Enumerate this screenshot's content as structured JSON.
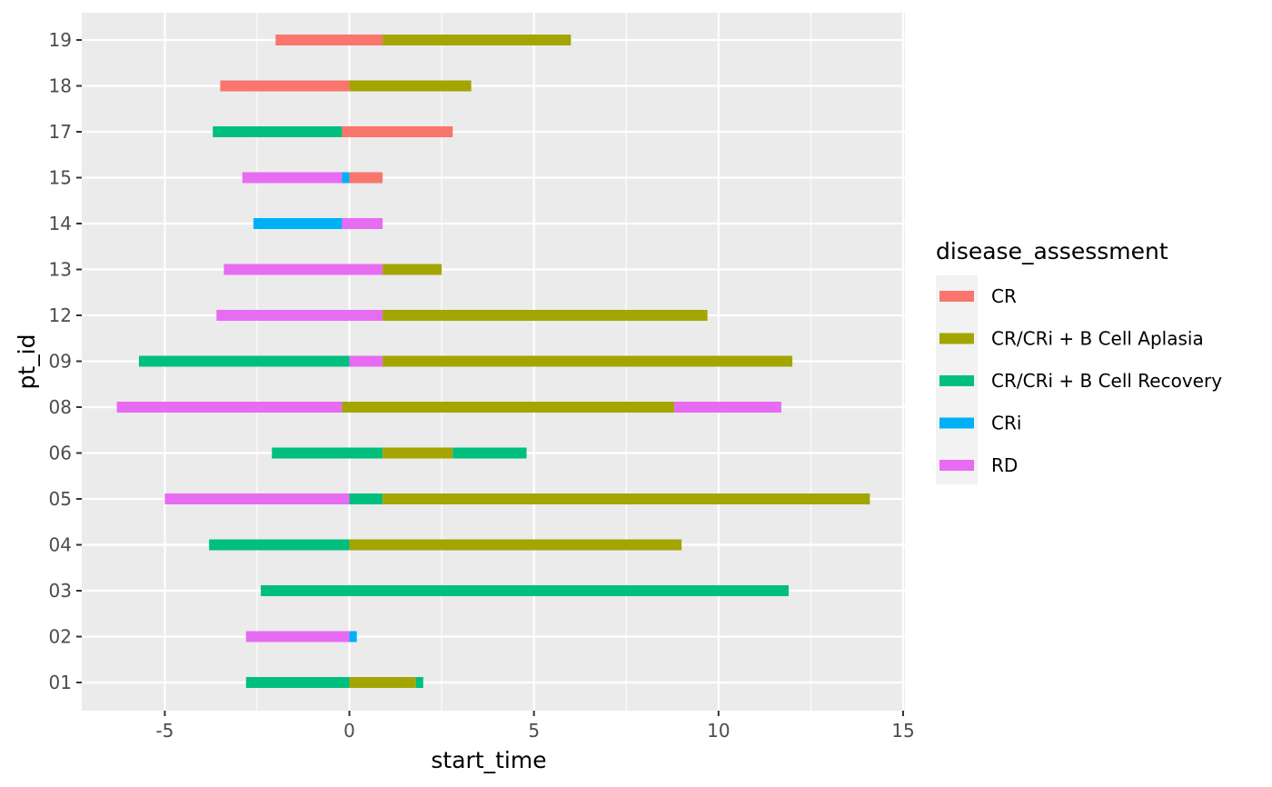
{
  "chart_data": {
    "type": "bar",
    "orientation": "horizontal-segments",
    "xlabel": "start_time",
    "ylabel": "pt_id",
    "xlim": [
      -7.25,
      15.05
    ],
    "x_ticks": [
      -5,
      0,
      5,
      10,
      15
    ],
    "x_tick_labels": [
      "-5",
      "0",
      "5",
      "10",
      "15"
    ],
    "categories": [
      "01",
      "02",
      "03",
      "04",
      "05",
      "06",
      "08",
      "09",
      "12",
      "13",
      "14",
      "15",
      "17",
      "18",
      "19"
    ],
    "grid": true,
    "legend": {
      "title": "disease_assessment",
      "placement": "right",
      "entries": [
        {
          "label": "CR",
          "color": "#F8766D"
        },
        {
          "label": "CR/CRi + B Cell Aplasia",
          "color": "#A3A500"
        },
        {
          "label": "CR/CRi + B Cell Recovery",
          "color": "#00BF7D"
        },
        {
          "label": "CRi",
          "color": "#00B0F6"
        },
        {
          "label": "RD",
          "color": "#E76BF3"
        }
      ]
    },
    "segments": [
      {
        "pt_id": "01",
        "start": -2.8,
        "end": 0.0,
        "assessment": "CR/CRi + B Cell Recovery"
      },
      {
        "pt_id": "01",
        "start": 0.0,
        "end": 1.8,
        "assessment": "CR/CRi + B Cell Aplasia"
      },
      {
        "pt_id": "01",
        "start": 1.8,
        "end": 2.0,
        "assessment": "CR/CRi + B Cell Recovery"
      },
      {
        "pt_id": "02",
        "start": -2.8,
        "end": 0.0,
        "assessment": "RD"
      },
      {
        "pt_id": "02",
        "start": 0.0,
        "end": 0.2,
        "assessment": "CRi"
      },
      {
        "pt_id": "03",
        "start": -2.4,
        "end": 11.9,
        "assessment": "CR/CRi + B Cell Recovery"
      },
      {
        "pt_id": "04",
        "start": -3.8,
        "end": 0.0,
        "assessment": "CR/CRi + B Cell Recovery"
      },
      {
        "pt_id": "04",
        "start": 0.0,
        "end": 9.0,
        "assessment": "CR/CRi + B Cell Aplasia"
      },
      {
        "pt_id": "05",
        "start": -5.0,
        "end": 0.0,
        "assessment": "RD"
      },
      {
        "pt_id": "05",
        "start": 0.0,
        "end": 0.9,
        "assessment": "CR/CRi + B Cell Recovery"
      },
      {
        "pt_id": "05",
        "start": 0.9,
        "end": 14.1,
        "assessment": "CR/CRi + B Cell Aplasia"
      },
      {
        "pt_id": "06",
        "start": -2.1,
        "end": 0.9,
        "assessment": "CR/CRi + B Cell Recovery"
      },
      {
        "pt_id": "06",
        "start": 0.9,
        "end": 2.8,
        "assessment": "CR/CRi + B Cell Aplasia"
      },
      {
        "pt_id": "06",
        "start": 2.8,
        "end": 4.8,
        "assessment": "CR/CRi + B Cell Recovery"
      },
      {
        "pt_id": "08",
        "start": -6.3,
        "end": -0.2,
        "assessment": "RD"
      },
      {
        "pt_id": "08",
        "start": -0.2,
        "end": 8.8,
        "assessment": "CR/CRi + B Cell Aplasia"
      },
      {
        "pt_id": "08",
        "start": 8.8,
        "end": 11.7,
        "assessment": "RD"
      },
      {
        "pt_id": "09",
        "start": -5.7,
        "end": 0.0,
        "assessment": "CR/CRi + B Cell Recovery"
      },
      {
        "pt_id": "09",
        "start": 0.0,
        "end": 0.9,
        "assessment": "RD"
      },
      {
        "pt_id": "09",
        "start": 0.9,
        "end": 12.0,
        "assessment": "CR/CRi + B Cell Aplasia"
      },
      {
        "pt_id": "12",
        "start": -3.6,
        "end": 0.9,
        "assessment": "RD"
      },
      {
        "pt_id": "12",
        "start": 0.9,
        "end": 9.7,
        "assessment": "CR/CRi + B Cell Aplasia"
      },
      {
        "pt_id": "13",
        "start": -3.4,
        "end": 0.9,
        "assessment": "RD"
      },
      {
        "pt_id": "13",
        "start": 0.9,
        "end": 2.5,
        "assessment": "CR/CRi + B Cell Aplasia"
      },
      {
        "pt_id": "14",
        "start": -2.6,
        "end": -0.2,
        "assessment": "CRi"
      },
      {
        "pt_id": "14",
        "start": -0.2,
        "end": 0.9,
        "assessment": "RD"
      },
      {
        "pt_id": "15",
        "start": -2.9,
        "end": -0.2,
        "assessment": "RD"
      },
      {
        "pt_id": "15",
        "start": -0.2,
        "end": 0.0,
        "assessment": "CRi"
      },
      {
        "pt_id": "15",
        "start": 0.0,
        "end": 0.9,
        "assessment": "CR"
      },
      {
        "pt_id": "17",
        "start": -3.7,
        "end": -0.2,
        "assessment": "CR/CRi + B Cell Recovery"
      },
      {
        "pt_id": "17",
        "start": -0.2,
        "end": 2.8,
        "assessment": "CR"
      },
      {
        "pt_id": "18",
        "start": -3.5,
        "end": 0.0,
        "assessment": "CR"
      },
      {
        "pt_id": "18",
        "start": 0.0,
        "end": 3.3,
        "assessment": "CR/CRi + B Cell Aplasia"
      },
      {
        "pt_id": "19",
        "start": -2.0,
        "end": 0.9,
        "assessment": "CR"
      },
      {
        "pt_id": "19",
        "start": 0.9,
        "end": 6.0,
        "assessment": "CR/CRi + B Cell Aplasia"
      }
    ]
  }
}
